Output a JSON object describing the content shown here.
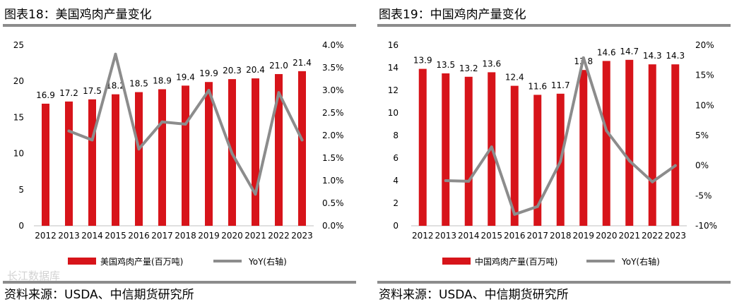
{
  "watermark": "长江数据库",
  "chart_data": [
    {
      "type": "bar",
      "title": "图表18：美国鸡肉产量变化",
      "source": "资料来源：USDA、中信期货研究所",
      "categories": [
        "2012",
        "2013",
        "2014",
        "2015",
        "2016",
        "2017",
        "2018",
        "2019",
        "2020",
        "2021",
        "2022",
        "2023"
      ],
      "series": [
        {
          "name": "美国鸡肉产量(百万吨)",
          "type": "bar",
          "axis": "left",
          "color": "#d7141a",
          "values": [
            16.9,
            17.2,
            17.5,
            18.2,
            18.5,
            18.9,
            19.4,
            19.9,
            20.3,
            20.4,
            21.0,
            21.4
          ],
          "labels": [
            "16.9",
            "17.2",
            "17.5",
            "18.2",
            "18.5",
            "18.9",
            "19.4",
            "19.9",
            "20.3",
            "20.4",
            "21.0",
            "21.4"
          ]
        },
        {
          "name": "YoY(右轴)",
          "type": "line",
          "axis": "right",
          "color": "#8c8c8c",
          "values": [
            null,
            2.1,
            1.9,
            3.8,
            1.7,
            2.3,
            2.25,
            3.0,
            1.6,
            0.7,
            2.95,
            1.9
          ]
        }
      ],
      "y_left": {
        "min": 0,
        "max": 25,
        "ticks": [
          "0",
          "5",
          "10",
          "15",
          "20",
          "25"
        ]
      },
      "y_right": {
        "min": 0,
        "max": 4.0,
        "ticks": [
          "0.0%",
          "0.5%",
          "1.0%",
          "1.5%",
          "2.0%",
          "2.5%",
          "3.0%",
          "3.5%",
          "4.0%"
        ]
      },
      "legend": "bottom"
    },
    {
      "type": "bar",
      "title": "图表19：中国鸡肉产量变化",
      "source": "资料来源：USDA、中信期货研究所",
      "categories": [
        "2012",
        "2013",
        "2014",
        "2015",
        "2016",
        "2017",
        "2018",
        "2019",
        "2020",
        "2021",
        "2022",
        "2023"
      ],
      "series": [
        {
          "name": "中国鸡肉产量(百万吨)",
          "type": "bar",
          "axis": "left",
          "color": "#d7141a",
          "values": [
            13.9,
            13.5,
            13.2,
            13.6,
            12.4,
            11.6,
            11.7,
            13.8,
            14.6,
            14.7,
            14.3,
            14.3
          ],
          "labels": [
            "13.9",
            "13.5",
            "13.2",
            "13.6",
            "12.4",
            "11.6",
            "11.7",
            "13.8",
            "14.6",
            "14.7",
            "14.3",
            "14.3"
          ]
        },
        {
          "name": "YoY(右轴)",
          "type": "line",
          "axis": "right",
          "color": "#8c8c8c",
          "values": [
            null,
            -2.5,
            -2.6,
            3.1,
            -8.1,
            -6.8,
            0.7,
            17.9,
            5.8,
            0.8,
            -2.7,
            0.0
          ]
        }
      ],
      "y_left": {
        "min": 0,
        "max": 16,
        "ticks": [
          "0",
          "2",
          "4",
          "6",
          "8",
          "10",
          "12",
          "14",
          "16"
        ]
      },
      "y_right": {
        "min": -10,
        "max": 20,
        "ticks": [
          "-10%",
          "-5%",
          "0%",
          "5%",
          "10%",
          "15%",
          "20%"
        ]
      },
      "legend": "bottom"
    }
  ]
}
